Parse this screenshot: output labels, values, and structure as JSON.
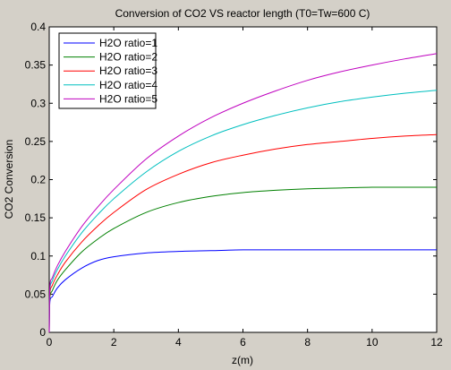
{
  "chart_data": {
    "type": "line",
    "title": "Conversion of CO2 VS reactor length (T0=Tw=600 C)",
    "xlabel": "z(m)",
    "ylabel": "CO2 Conversion",
    "xlim": [
      0,
      12
    ],
    "ylim": [
      0,
      0.4
    ],
    "xticks": [
      0,
      2,
      4,
      6,
      8,
      10,
      12
    ],
    "xtick_labels": [
      "0",
      "2",
      "4",
      "6",
      "8",
      "10",
      "12"
    ],
    "yticks": [
      0,
      0.05,
      0.1,
      0.15,
      0.2,
      0.25,
      0.3,
      0.35,
      0.4
    ],
    "ytick_labels": [
      "0",
      "0.05",
      "0.1",
      "0.15",
      "0.2",
      "0.25",
      "0.3",
      "0.35",
      "0.4"
    ],
    "grid": false,
    "legend_position": "top-left",
    "x": [
      0,
      0.02,
      0.1,
      0.25,
      0.5,
      1,
      1.5,
      2,
      3,
      4,
      5,
      6,
      7,
      8,
      9,
      10,
      11,
      12
    ],
    "series": [
      {
        "name": "H2O ratio=1",
        "color": "#0000ff",
        "values": [
          0.0,
          0.04,
          0.047,
          0.058,
          0.069,
          0.084,
          0.094,
          0.099,
          0.104,
          0.106,
          0.107,
          0.108,
          0.108,
          0.108,
          0.108,
          0.108,
          0.108,
          0.108
        ]
      },
      {
        "name": "H2O ratio=2",
        "color": "#008000",
        "values": [
          0.0,
          0.045,
          0.055,
          0.068,
          0.082,
          0.105,
          0.122,
          0.136,
          0.157,
          0.17,
          0.178,
          0.183,
          0.186,
          0.188,
          0.189,
          0.19,
          0.19,
          0.19
        ]
      },
      {
        "name": "H2O ratio=3",
        "color": "#ff0000",
        "values": [
          0.0,
          0.05,
          0.062,
          0.075,
          0.092,
          0.118,
          0.139,
          0.157,
          0.187,
          0.207,
          0.222,
          0.232,
          0.24,
          0.246,
          0.25,
          0.254,
          0.257,
          0.259
        ]
      },
      {
        "name": "H2O ratio=4",
        "color": "#00bfbf",
        "values": [
          0.0,
          0.055,
          0.068,
          0.082,
          0.1,
          0.13,
          0.154,
          0.175,
          0.21,
          0.237,
          0.257,
          0.272,
          0.284,
          0.294,
          0.302,
          0.308,
          0.313,
          0.317
        ]
      },
      {
        "name": "H2O ratio=5",
        "color": "#bf00bf",
        "values": [
          0.0,
          0.06,
          0.072,
          0.087,
          0.106,
          0.138,
          0.164,
          0.187,
          0.227,
          0.257,
          0.281,
          0.3,
          0.316,
          0.33,
          0.341,
          0.35,
          0.358,
          0.365
        ]
      }
    ]
  }
}
